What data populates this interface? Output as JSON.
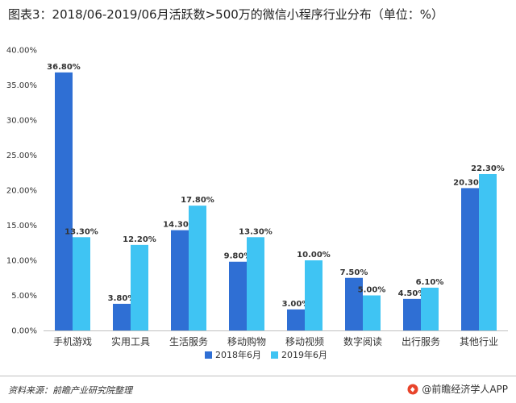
{
  "header": {
    "title": "图表3：2018/06-2019/06月活跃数>500万的微信小程序行业分布（单位：%）"
  },
  "chart_data": {
    "type": "bar",
    "categories": [
      "手机游戏",
      "实用工具",
      "生活服务",
      "移动购物",
      "移动视频",
      "数字阅读",
      "出行服务",
      "其他行业"
    ],
    "series": [
      {
        "name": "2018年6月",
        "values": [
          36.8,
          3.8,
          14.3,
          9.8,
          3.0,
          7.5,
          4.5,
          20.3
        ],
        "labels": [
          "36.80%",
          "3.80%",
          "14.30%",
          "9.80%",
          "3.00%",
          "7.50%",
          "4.50%",
          "20.30%"
        ],
        "color": "#2f6fd4"
      },
      {
        "name": "2019年6月",
        "values": [
          13.3,
          12.2,
          17.8,
          13.3,
          10.0,
          5.0,
          6.1,
          22.3
        ],
        "labels": [
          "13.30%",
          "12.20%",
          "17.80%",
          "13.30%",
          "10.00%",
          "5.00%",
          "6.10%",
          "22.30%"
        ],
        "color": "#3fc4f3"
      }
    ],
    "ylim": [
      0,
      40
    ],
    "yticks": [
      0,
      5,
      10,
      15,
      20,
      25,
      30,
      35,
      40
    ],
    "yticklabels": [
      "0.00%",
      "5.00%",
      "10.00%",
      "15.00%",
      "20.00%",
      "25.00%",
      "30.00%",
      "35.00%",
      "40.00%"
    ],
    "xlabel": "",
    "ylabel": "",
    "grid": false,
    "legend": "bottom"
  },
  "footer": {
    "source": "资料来源：前瞻产业研究院整理",
    "brand": "@前瞻经济学人APP"
  }
}
